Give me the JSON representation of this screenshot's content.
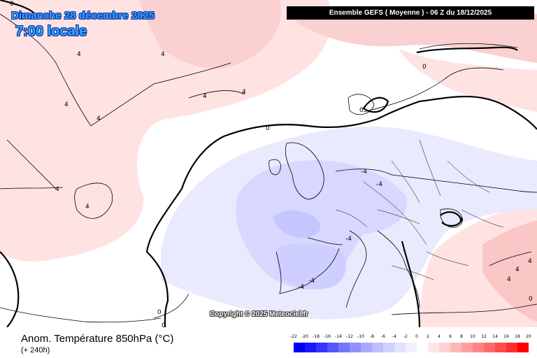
{
  "header": {
    "date": "Dimanche 28 décembre 2025",
    "local_time": "7:00 locale",
    "model_run": "Ensemble GEFS  ( Moyenne )  -  06 Z du 18/12/2025"
  },
  "copyright": "Copyright © 2025 Meteociel.fr",
  "field": {
    "title": "Anom. Température 850hPa (°C)",
    "lead_time": "(+ 240h)"
  },
  "legend": {
    "labels": [
      "-22",
      "-20",
      "-18",
      "-16",
      "-14",
      "-12",
      "-10",
      "-8",
      "-6",
      "-4",
      "-2",
      "0",
      "2",
      "4",
      "6",
      "8",
      "10",
      "12",
      "14",
      "16",
      "18",
      "20"
    ],
    "colors": [
      "#0000ff",
      "#1818ff",
      "#3535ff",
      "#5555ff",
      "#7474ff",
      "#9191ff",
      "#a8a8ff",
      "#bdbdff",
      "#d0d0ff",
      "#e2e2ff",
      "#f0f0ff",
      "#ffffff",
      "#ffe6e6",
      "#ffd0d0",
      "#ffb8b8",
      "#ff9f9f",
      "#ff8585",
      "#ff6a6a",
      "#ff4c4c",
      "#ff2e2e",
      "#ff0000"
    ]
  },
  "contour_labels": [
    "0",
    "0",
    "0",
    "0",
    "0",
    "0",
    "0",
    "4",
    "4",
    "4",
    "4",
    "4",
    "4",
    "4",
    "4",
    "-4",
    "-4",
    "-4",
    "-4",
    "-4",
    "4",
    "4",
    "4",
    "0"
  ]
}
